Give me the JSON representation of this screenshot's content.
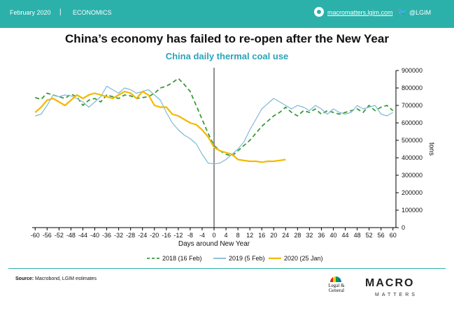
{
  "header": {
    "date": "February 2020",
    "separator": "|",
    "section": "ECONOMICS",
    "website": "macromatters.lgim.com",
    "twitter": "@LGIM",
    "website_icon": "globe-icon",
    "twitter_icon": "twitter-bird-icon",
    "background_color": "#2bb1aa"
  },
  "title": "China’s economy has failed to re-open after the New Year",
  "footer": {
    "source_label": "Source:",
    "source_text": "Macrobond, LGIM estimates",
    "lg_logo": [
      "Legal &",
      "General"
    ],
    "macro": "MACRO",
    "matters": "MATTERS"
  },
  "chart_data": {
    "type": "line",
    "title": "China daily thermal coal use",
    "xlabel": "Days around New Year",
    "ylabel": "tons",
    "xlim": [
      -61,
      61
    ],
    "ylim": [
      0,
      900000
    ],
    "x_ticks": [
      -60,
      -56,
      -52,
      -48,
      -44,
      -40,
      -36,
      -32,
      -28,
      -24,
      -20,
      -16,
      -12,
      -8,
      -4,
      0,
      4,
      8,
      12,
      16,
      20,
      24,
      28,
      32,
      36,
      40,
      44,
      48,
      52,
      56,
      60
    ],
    "y_ticks": [
      0,
      100000,
      200000,
      300000,
      400000,
      500000,
      600000,
      700000,
      800000,
      900000
    ],
    "y_tick_labels": [
      "0",
      "100000",
      "200000",
      "300000",
      "400000",
      "500000",
      "600000",
      "700000",
      "800000",
      "900000"
    ],
    "vline_x": 0,
    "legend_position": "bottom",
    "series": [
      {
        "name": "2018 (16 Feb)",
        "color": "#3a9a3a",
        "dash": "dashed",
        "x": [
          -60,
          -58,
          -56,
          -54,
          -52,
          -50,
          -48,
          -46,
          -44,
          -42,
          -40,
          -38,
          -36,
          -34,
          -32,
          -30,
          -28,
          -26,
          -24,
          -22,
          -20,
          -18,
          -16,
          -14,
          -12,
          -10,
          -8,
          -6,
          -4,
          -2,
          0,
          2,
          4,
          6,
          8,
          10,
          12,
          14,
          16,
          18,
          20,
          22,
          24,
          26,
          28,
          30,
          32,
          34,
          36,
          38,
          40,
          42,
          44,
          46,
          48,
          50,
          52,
          54,
          56,
          58,
          60
        ],
        "y": [
          745000,
          735000,
          770000,
          760000,
          750000,
          740000,
          765000,
          750000,
          700000,
          730000,
          740000,
          720000,
          760000,
          750000,
          740000,
          760000,
          755000,
          740000,
          745000,
          750000,
          770000,
          800000,
          810000,
          830000,
          855000,
          820000,
          780000,
          700000,
          620000,
          540000,
          470000,
          440000,
          420000,
          410000,
          440000,
          470000,
          500000,
          540000,
          580000,
          610000,
          640000,
          660000,
          690000,
          660000,
          640000,
          670000,
          660000,
          680000,
          650000,
          670000,
          660000,
          650000,
          660000,
          670000,
          680000,
          660000,
          700000,
          670000,
          690000,
          700000,
          670000
        ]
      },
      {
        "name": "2019 (5 Feb)",
        "color": "#7fb9d6",
        "dash": "solid",
        "x": [
          -60,
          -58,
          -56,
          -54,
          -52,
          -50,
          -48,
          -46,
          -44,
          -42,
          -40,
          -38,
          -36,
          -34,
          -32,
          -30,
          -28,
          -26,
          -24,
          -22,
          -20,
          -18,
          -16,
          -14,
          -12,
          -10,
          -8,
          -6,
          -4,
          -2,
          0,
          2,
          4,
          6,
          8,
          10,
          12,
          14,
          16,
          18,
          20,
          22,
          24,
          26,
          28,
          30,
          32,
          34,
          36,
          38,
          40,
          42,
          44,
          46,
          48,
          50,
          52,
          54,
          56,
          58,
          60
        ],
        "y": [
          640000,
          650000,
          700000,
          760000,
          750000,
          760000,
          755000,
          740000,
          720000,
          690000,
          720000,
          750000,
          810000,
          790000,
          770000,
          800000,
          790000,
          770000,
          780000,
          790000,
          760000,
          730000,
          660000,
          600000,
          560000,
          530000,
          510000,
          480000,
          420000,
          370000,
          365000,
          370000,
          390000,
          420000,
          450000,
          490000,
          560000,
          620000,
          680000,
          710000,
          740000,
          720000,
          700000,
          680000,
          700000,
          690000,
          670000,
          700000,
          680000,
          650000,
          680000,
          660000,
          650000,
          660000,
          700000,
          680000,
          690000,
          700000,
          650000,
          640000,
          660000
        ]
      },
      {
        "name": "2020 (25 Jan)",
        "color": "#f5b800",
        "dash": "solid",
        "x": [
          -60,
          -58,
          -56,
          -54,
          -52,
          -50,
          -48,
          -46,
          -44,
          -42,
          -40,
          -38,
          -36,
          -34,
          -32,
          -30,
          -28,
          -26,
          -24,
          -22,
          -20,
          -18,
          -16,
          -14,
          -12,
          -10,
          -8,
          -6,
          -4,
          -2,
          0,
          2,
          4,
          6,
          8,
          10,
          12,
          14,
          16,
          18,
          20,
          22,
          24
        ],
        "y": [
          660000,
          690000,
          730000,
          740000,
          720000,
          700000,
          730000,
          760000,
          740000,
          760000,
          770000,
          760000,
          750000,
          740000,
          760000,
          780000,
          770000,
          740000,
          780000,
          760000,
          700000,
          690000,
          690000,
          650000,
          640000,
          620000,
          600000,
          590000,
          560000,
          520000,
          460000,
          440000,
          430000,
          420000,
          390000,
          385000,
          380000,
          380000,
          375000,
          380000,
          380000,
          385000,
          390000
        ]
      }
    ]
  }
}
